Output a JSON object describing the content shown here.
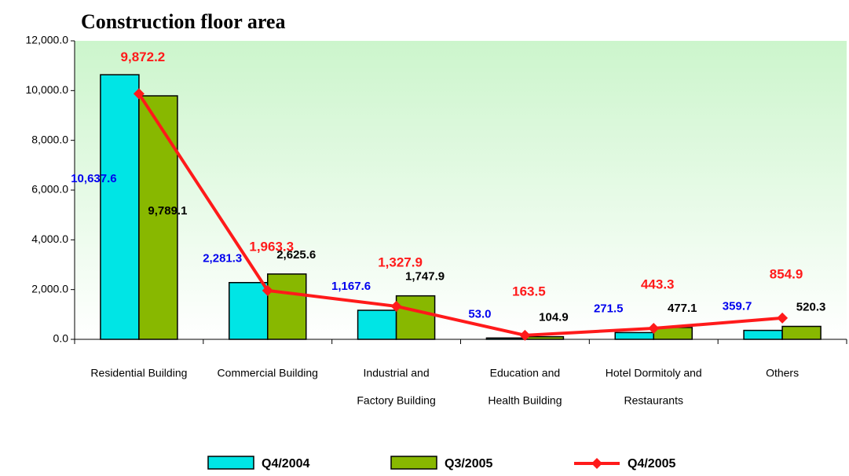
{
  "chart_data": {
    "type": "bar_line",
    "title": "Construction floor area",
    "categories": [
      [
        "Residential Building"
      ],
      [
        "Commercial Building"
      ],
      [
        "Industrial and",
        "Factory Building"
      ],
      [
        "Education and",
        "Health Building"
      ],
      [
        "Hotel Dormitoly and",
        "Restaurants"
      ],
      [
        "Others"
      ]
    ],
    "series": [
      {
        "name": "Q4/2004",
        "type": "bar",
        "color": "#00e5e5",
        "label_color": "#0000ee",
        "values": [
          10637.6,
          2281.3,
          1167.6,
          53.0,
          271.5,
          359.7
        ],
        "value_labels": [
          "10,637.6",
          "2,281.3",
          "1,167.6",
          "53.0",
          "271.5",
          "359.7"
        ]
      },
      {
        "name": "Q3/2005",
        "type": "bar",
        "color": "#88b800",
        "label_color": "#000000",
        "values": [
          9789.1,
          2625.6,
          1747.9,
          104.9,
          477.1,
          520.3
        ],
        "value_labels": [
          "9,789.1",
          "2,625.6",
          "1,747.9",
          "104.9",
          "477.1",
          "520.3"
        ]
      },
      {
        "name": "Q4/2005",
        "type": "line",
        "color": "#ff1a1a",
        "label_color": "#ff1a1a",
        "values": [
          9872.2,
          1963.3,
          1327.9,
          163.5,
          443.3,
          854.9
        ],
        "value_labels": [
          "9,872.2",
          "1,963.3",
          "1,327.9",
          "163.5",
          "443.3",
          "854.9"
        ]
      }
    ],
    "ylim": [
      0,
      12000
    ],
    "yticks": [
      {
        "value": 0,
        "label": "0.0"
      },
      {
        "value": 2000,
        "label": "2,000.0"
      },
      {
        "value": 4000,
        "label": "4,000.0"
      },
      {
        "value": 6000,
        "label": "6,000.0"
      },
      {
        "value": 8000,
        "label": "8,000.0"
      },
      {
        "value": 10000,
        "label": "10,000.0"
      },
      {
        "value": 12000,
        "label": "12,000.0"
      }
    ],
    "legend": "bottom"
  }
}
